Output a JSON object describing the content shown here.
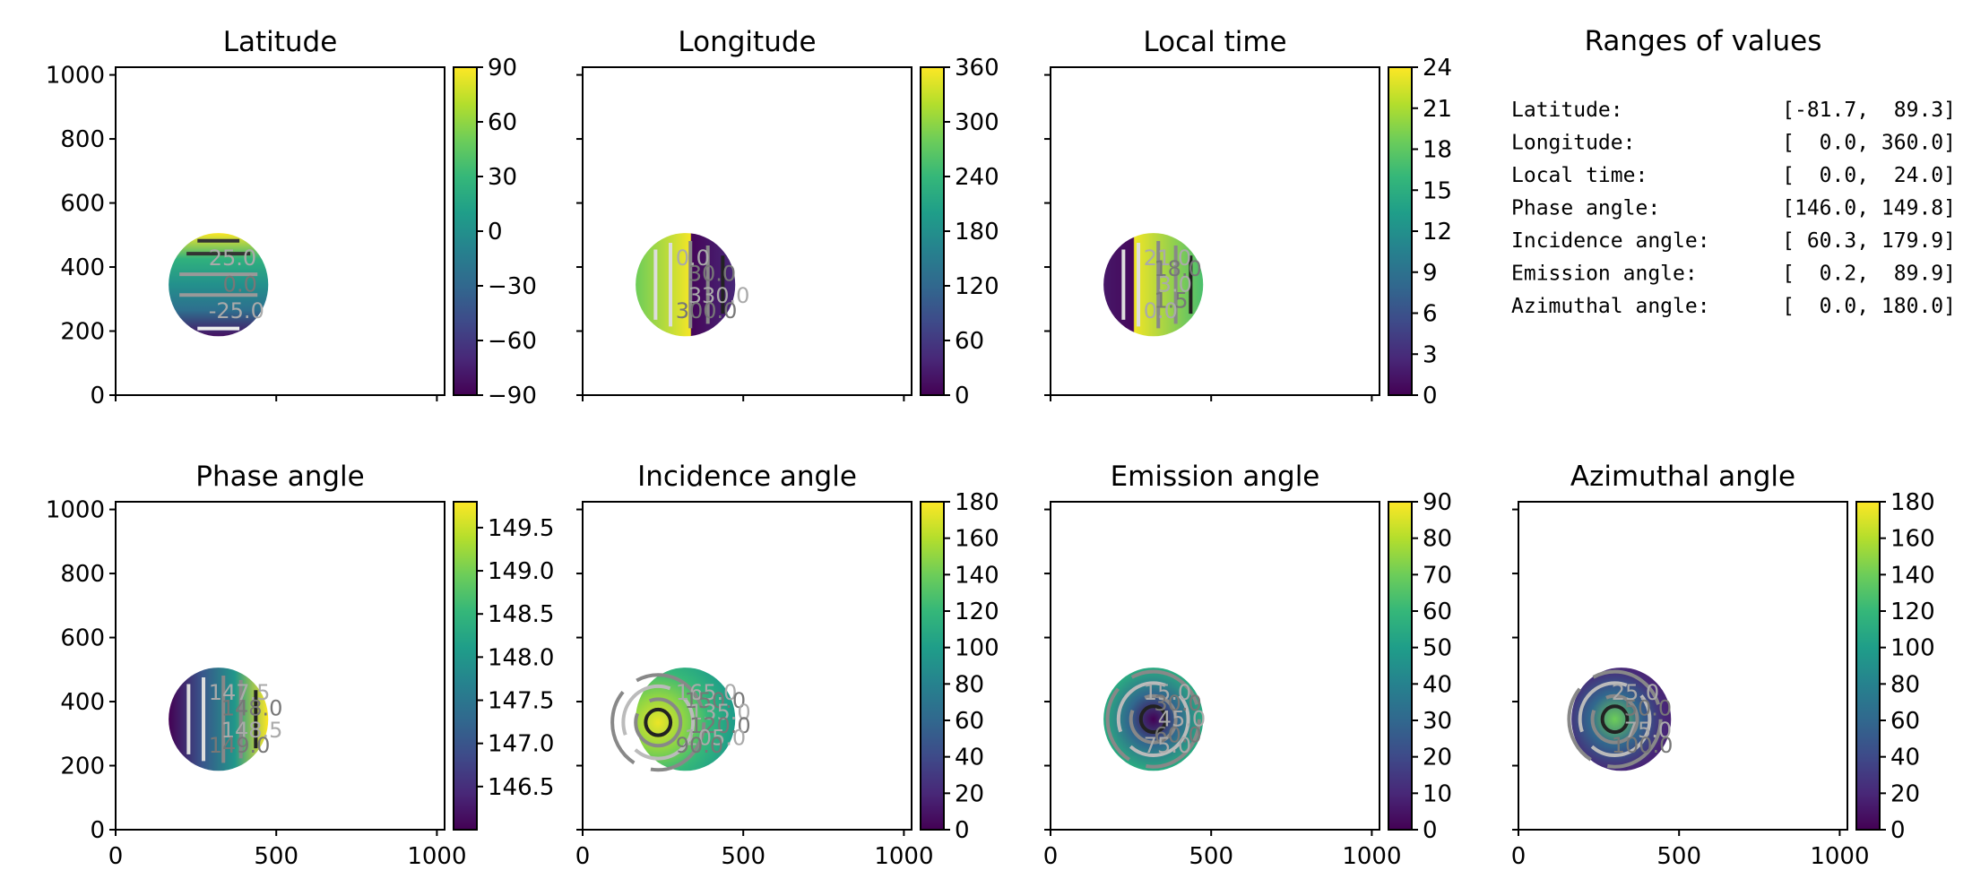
{
  "figure": {
    "ranges_panel": {
      "title": "Ranges of values",
      "rows": [
        {
          "label": "Latitude:",
          "range": "[-81.7,  89.3]"
        },
        {
          "label": "Longitude:",
          "range": "[  0.0, 360.0]"
        },
        {
          "label": "Local time:",
          "range": "[  0.0,  24.0]"
        },
        {
          "label": "Phase angle:",
          "range": "[146.0, 149.8]"
        },
        {
          "label": "Incidence angle:",
          "range": "[ 60.3, 179.9]"
        },
        {
          "label": "Emission angle:",
          "range": "[  0.2,  89.9]"
        },
        {
          "label": "Azimuthal angle:",
          "range": "[  0.0, 180.0]"
        }
      ]
    }
  },
  "chart_data": [
    {
      "type": "heatmap",
      "title": "Latitude",
      "colormap": "viridis",
      "xlim": [
        0,
        1024
      ],
      "ylim": [
        0,
        1024
      ],
      "xticks": [
        0,
        500,
        1000
      ],
      "xtick_labels_shown": false,
      "yticks": [
        0,
        200,
        400,
        600,
        800,
        1000
      ],
      "ytick_labels": [
        "0",
        "200",
        "400",
        "600",
        "800",
        "1000"
      ],
      "colorbar": {
        "range": [
          -90,
          90
        ],
        "ticks": [
          -90,
          -60,
          -30,
          0,
          30,
          60,
          90
        ],
        "tick_labels": [
          "−90",
          "−60",
          "−30",
          "0",
          "30",
          "60",
          "90"
        ]
      },
      "disk": {
        "center": [
          320,
          345
        ],
        "radius": 155
      },
      "value_range": [
        -81.7,
        89.3
      ],
      "gradient": "vertical",
      "gradient_stops": [
        -81.7,
        -25,
        0,
        25,
        89.3
      ],
      "contour_labels": [
        "25.0",
        "0.0",
        "-25.0"
      ]
    },
    {
      "type": "heatmap",
      "title": "Longitude",
      "colormap": "viridis",
      "xlim": [
        0,
        1024
      ],
      "ylim": [
        0,
        1024
      ],
      "xticks": [
        0,
        500,
        1000
      ],
      "xtick_labels_shown": false,
      "yticks": [
        0,
        200,
        400,
        600,
        800,
        1000
      ],
      "ytick_labels_shown": false,
      "colorbar": {
        "range": [
          0,
          360
        ],
        "ticks": [
          0,
          60,
          120,
          180,
          240,
          300,
          360
        ],
        "tick_labels": [
          "0",
          "60",
          "120",
          "180",
          "240",
          "300",
          "360"
        ]
      },
      "disk": {
        "center": [
          320,
          345
        ],
        "radius": 155
      },
      "value_range": [
        0.0,
        360.0
      ],
      "gradient": "horizontal",
      "gradient_stops": [
        280,
        360,
        0,
        40
      ],
      "contour_labels": [
        "0.0",
        "30.0",
        "330.0",
        "300.0"
      ]
    },
    {
      "type": "heatmap",
      "title": "Local time",
      "colormap": "viridis",
      "xlim": [
        0,
        1024
      ],
      "ylim": [
        0,
        1024
      ],
      "xticks": [
        0,
        500,
        1000
      ],
      "xtick_labels_shown": false,
      "yticks": [
        0,
        200,
        400,
        600,
        800,
        1000
      ],
      "ytick_labels_shown": false,
      "colorbar": {
        "range": [
          0,
          24
        ],
        "ticks": [
          0,
          3,
          6,
          9,
          12,
          15,
          18,
          21,
          24
        ],
        "tick_labels": [
          "0",
          "3",
          "6",
          "9",
          "12",
          "15",
          "18",
          "21",
          "24"
        ]
      },
      "disk": {
        "center": [
          320,
          345
        ],
        "radius": 155
      },
      "value_range": [
        0.0,
        24.0
      ],
      "gradient": "horizontal",
      "gradient_stops": [
        1.5,
        0.5,
        23.5,
        18.5
      ],
      "contour_labels": [
        "21.0",
        "18.0",
        "3.0",
        "1.5",
        "0.0"
      ]
    },
    {
      "type": "heatmap",
      "title": "Phase angle",
      "colormap": "viridis",
      "xlim": [
        0,
        1024
      ],
      "ylim": [
        0,
        1024
      ],
      "xticks": [
        0,
        500,
        1000
      ],
      "xtick_labels": [
        "0",
        "500",
        "1000"
      ],
      "yticks": [
        0,
        200,
        400,
        600,
        800,
        1000
      ],
      "ytick_labels": [
        "0",
        "200",
        "400",
        "600",
        "800",
        "1000"
      ],
      "colorbar": {
        "range": [
          146.0,
          149.8
        ],
        "ticks": [
          146.5,
          147.0,
          147.5,
          148.0,
          148.5,
          149.0,
          149.5
        ],
        "tick_labels": [
          "146.5",
          "147.0",
          "147.5",
          "148.0",
          "148.5",
          "149.0",
          "149.5"
        ]
      },
      "disk": {
        "center": [
          320,
          345
        ],
        "radius": 155
      },
      "value_range": [
        146.0,
        149.8
      ],
      "gradient": "horizontal",
      "gradient_stops": [
        146.0,
        147.0,
        148.0,
        149.8
      ],
      "contour_labels": [
        "147.5",
        "148.0",
        "148.5",
        "149.0"
      ]
    },
    {
      "type": "heatmap",
      "title": "Incidence angle",
      "colormap": "viridis",
      "xlim": [
        0,
        1024
      ],
      "ylim": [
        0,
        1024
      ],
      "xticks": [
        0,
        500,
        1000
      ],
      "xtick_labels": [
        "0",
        "500",
        "1000"
      ],
      "yticks": [
        0,
        200,
        400,
        600,
        800,
        1000
      ],
      "ytick_labels_shown": false,
      "colorbar": {
        "range": [
          0,
          180
        ],
        "ticks": [
          0,
          20,
          40,
          60,
          80,
          100,
          120,
          140,
          160,
          180
        ],
        "tick_labels": [
          "0",
          "20",
          "40",
          "60",
          "80",
          "100",
          "120",
          "140",
          "160",
          "180"
        ]
      },
      "disk": {
        "center": [
          320,
          345
        ],
        "radius": 155
      },
      "value_range": [
        60.3,
        179.9
      ],
      "gradient": "radial",
      "gradient_center": [
        235,
        335
      ],
      "gradient_stops": [
        175,
        150,
        120,
        100
      ],
      "contour_labels": [
        "165.0",
        "150.0",
        "135.0",
        "120.0",
        "105.0",
        "90.0"
      ]
    },
    {
      "type": "heatmap",
      "title": "Emission angle",
      "colormap": "viridis",
      "xlim": [
        0,
        1024
      ],
      "ylim": [
        0,
        1024
      ],
      "xticks": [
        0,
        500,
        1000
      ],
      "xtick_labels": [
        "0",
        "500",
        "1000"
      ],
      "yticks": [
        0,
        200,
        400,
        600,
        800,
        1000
      ],
      "ytick_labels_shown": false,
      "colorbar": {
        "range": [
          0,
          90
        ],
        "ticks": [
          0,
          10,
          20,
          30,
          40,
          50,
          60,
          70,
          80,
          90
        ],
        "tick_labels": [
          "0",
          "10",
          "20",
          "30",
          "40",
          "50",
          "60",
          "70",
          "80",
          "90"
        ]
      },
      "disk": {
        "center": [
          320,
          345
        ],
        "radius": 155
      },
      "value_range": [
        0.2,
        89.9
      ],
      "gradient": "radial",
      "gradient_center": [
        320,
        345
      ],
      "gradient_stops": [
        0.2,
        30,
        55,
        89.9
      ],
      "contour_labels": [
        "15.0",
        "30.0",
        "45.0",
        "60.0",
        "75.0"
      ]
    },
    {
      "type": "heatmap",
      "title": "Azimuthal angle",
      "colormap": "viridis",
      "xlim": [
        0,
        1024
      ],
      "ylim": [
        0,
        1024
      ],
      "xticks": [
        0,
        500,
        1000
      ],
      "xtick_labels": [
        "0",
        "500",
        "1000"
      ],
      "yticks": [
        0,
        200,
        400,
        600,
        800,
        1000
      ],
      "ytick_labels_shown": false,
      "colorbar": {
        "range": [
          0,
          180
        ],
        "ticks": [
          0,
          20,
          40,
          60,
          80,
          100,
          120,
          140,
          160,
          180
        ],
        "tick_labels": [
          "0",
          "20",
          "40",
          "60",
          "80",
          "100",
          "120",
          "140",
          "160",
          "180"
        ]
      },
      "disk": {
        "center": [
          320,
          345
        ],
        "radius": 155
      },
      "value_range": [
        0.0,
        180.0
      ],
      "gradient": "radial",
      "gradient_center": [
        300,
        345
      ],
      "gradient_stops": [
        140,
        60,
        20,
        10
      ],
      "contour_labels": [
        "25.0",
        "50.0",
        "75.0",
        "100.0"
      ]
    }
  ]
}
